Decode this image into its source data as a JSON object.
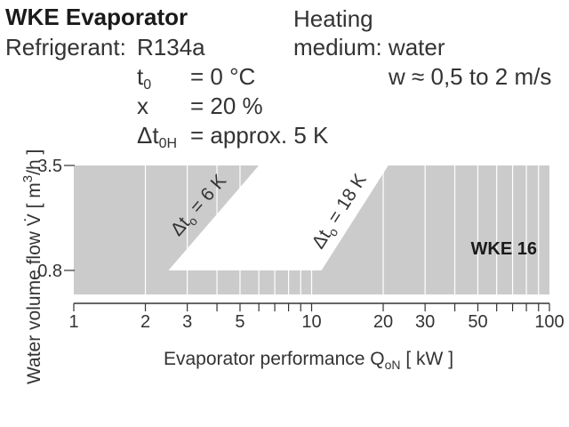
{
  "header": {
    "title": "WKE Evaporator",
    "refrigerant_label": "Refrigerant:",
    "refrigerant_value": "R134a",
    "t0_sym": "t",
    "t0_sub": "0",
    "t0_val": "= 0 °C",
    "x_sym": "x",
    "x_val": "= 20 %",
    "dt_sym": "Δt",
    "dt_sub": "0H",
    "dt_val": "= approx. 5 K",
    "heating_line1": "Heating",
    "heating_line2": "medium: water",
    "velocity": "w ≈ 0,5 to 2 m/s"
  },
  "chart_data": {
    "type": "area",
    "x_scale": "log",
    "y_scale": "linear",
    "xlim": [
      1,
      100
    ],
    "ylim": [
      0.8,
      3.5
    ],
    "xlabel_main": "Evaporator performance Q",
    "xlabel_sub": "oN",
    "xlabel_unit": "[ kW ]",
    "ylabel_main": "Water volume flow V̇ [ m",
    "ylabel_sup": "3",
    "ylabel_unit": "/h ]",
    "x_ticks": [
      {
        "value": 1,
        "label": "1"
      },
      {
        "value": 2,
        "label": "2"
      },
      {
        "value": 3,
        "label": "3"
      },
      {
        "value": 5,
        "label": "5"
      },
      {
        "value": 10,
        "label": "10"
      },
      {
        "value": 20,
        "label": "20"
      },
      {
        "value": 30,
        "label": "30"
      },
      {
        "value": 50,
        "label": "50"
      },
      {
        "value": 100,
        "label": "100"
      }
    ],
    "y_ticks": [
      {
        "value": 3.5,
        "label": "3.5"
      },
      {
        "value": 0.8,
        "label": "0.8"
      }
    ],
    "region_label": "WKE 16",
    "boundary_low": {
      "label": "Δt",
      "sub": "o",
      "rest": " = 6 K",
      "from": [
        2.5,
        0.8
      ],
      "to": [
        6,
        3.5
      ]
    },
    "boundary_high": {
      "label": "Δt",
      "sub": "o",
      "rest": " = 18 K",
      "from": [
        11,
        0.8
      ],
      "to": [
        21,
        3.5
      ]
    },
    "colors": {
      "fill": "#cbcbcb",
      "grid": "#ffffff",
      "axis": "#333333"
    }
  }
}
